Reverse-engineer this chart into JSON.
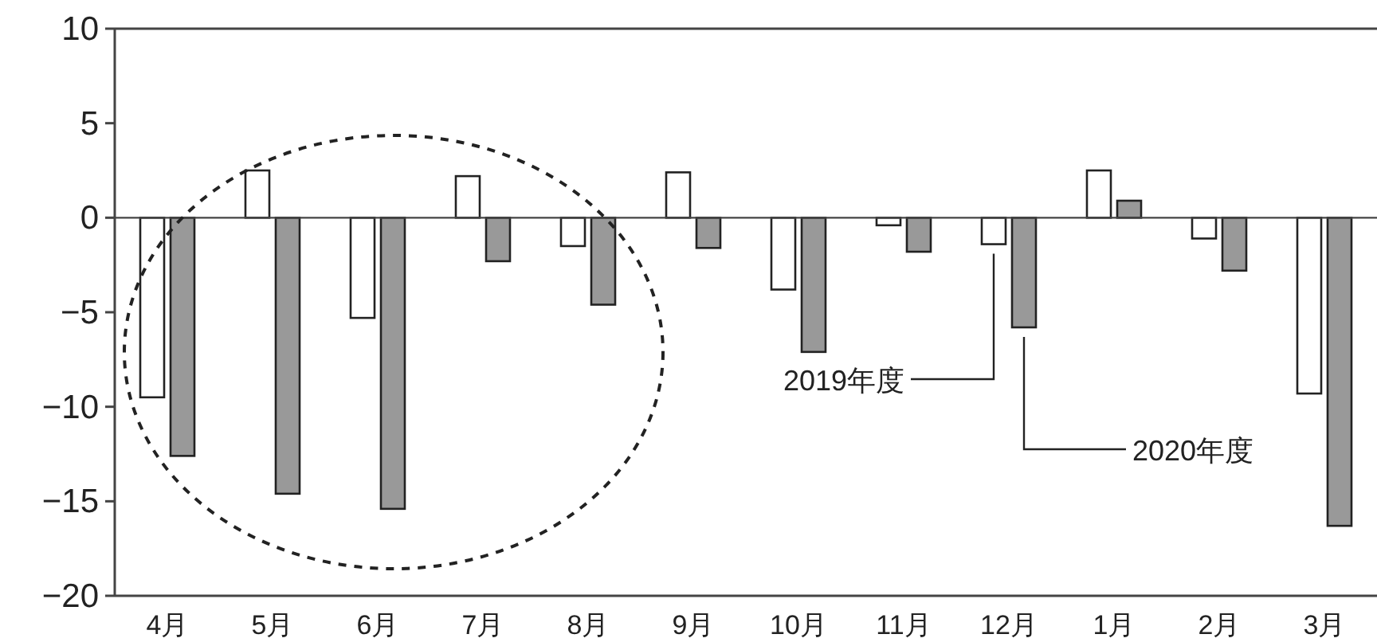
{
  "chart_data": {
    "type": "bar",
    "categories": [
      "4月",
      "5月",
      "6月",
      "7月",
      "8月",
      "9月",
      "10月",
      "11月",
      "12月",
      "1月",
      "2月",
      "3月"
    ],
    "series": [
      {
        "name": "2019年度",
        "color": "#ffffff",
        "values": [
          -9.5,
          2.5,
          -5.3,
          2.2,
          -1.5,
          2.4,
          -3.8,
          -0.4,
          -1.4,
          2.5,
          -1.1,
          -9.3
        ]
      },
      {
        "name": "2020年度",
        "color": "#999999",
        "values": [
          -12.6,
          -14.6,
          -15.4,
          -2.3,
          -4.6,
          -1.6,
          -7.1,
          -1.8,
          -5.8,
          0.9,
          -2.8,
          -16.3
        ]
      }
    ],
    "ylim": [
      -20,
      10
    ],
    "yticks": [
      -20,
      -15,
      -10,
      -5,
      0,
      5,
      10
    ],
    "legend": false
  }
}
